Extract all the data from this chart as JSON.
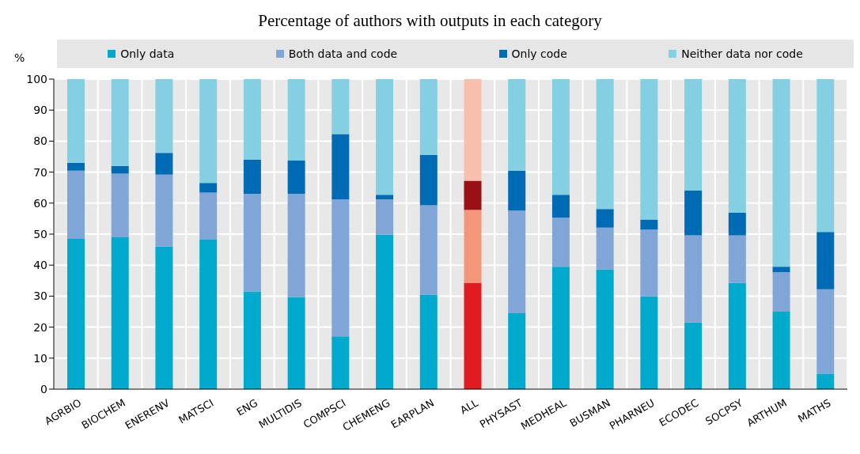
{
  "chart_data": {
    "type": "bar",
    "title": "Percentage of authors with outputs in each category",
    "ylabel": "%",
    "stacked": true,
    "grid": true,
    "legend": "top",
    "ylim": [
      0,
      100
    ],
    "yticks": [
      0,
      10,
      20,
      30,
      40,
      50,
      60,
      70,
      80,
      90,
      100
    ],
    "categories": [
      "AGRBIO",
      "BIOCHEM",
      "ENERENV",
      "MATSCI",
      "ENG",
      "MULTIDIS",
      "COMPSCI",
      "CHEMENG",
      "EARPLAN",
      "ALL",
      "PHYSAST",
      "MEDHEAL",
      "BUSMAN",
      "PHARNEU",
      "ECODEC",
      "SOCPSY",
      "ARTHUM",
      "MATHS"
    ],
    "series": [
      {
        "name": "Only data",
        "color": "#00aacc",
        "colors": [
          "#00aacc",
          "#00aacc",
          "#00aacc",
          "#00aacc",
          "#00aacc",
          "#00aacc",
          "#00aacc",
          "#00aacc",
          "#00aacc",
          "#e01b22",
          "#00aacc",
          "#00aacc",
          "#00aacc",
          "#00aacc",
          "#00aacc",
          "#00aacc",
          "#00aacc",
          "#00aacc"
        ],
        "values": [
          48.5,
          49,
          46,
          48.2,
          31.5,
          29.7,
          17,
          49.8,
          30.5,
          34.3,
          24.5,
          39.5,
          38.6,
          29.9,
          21.5,
          34.3,
          25,
          5
        ]
      },
      {
        "name": "Both data and code",
        "color": "#7fa6d6",
        "colors": [
          "#7fa6d6",
          "#7fa6d6",
          "#7fa6d6",
          "#7fa6d6",
          "#7fa6d6",
          "#7fa6d6",
          "#7fa6d6",
          "#7fa6d6",
          "#7fa6d6",
          "#f4967a",
          "#7fa6d6",
          "#7fa6d6",
          "#7fa6d6",
          "#7fa6d6",
          "#7fa6d6",
          "#7fa6d6",
          "#7fa6d6",
          "#7fa6d6"
        ],
        "values": [
          22,
          20.5,
          23.2,
          15.2,
          31.5,
          33.3,
          44.2,
          11.4,
          28.8,
          23.5,
          33.1,
          15.8,
          13.5,
          21.6,
          28.1,
          15.3,
          12.7,
          27.2
        ]
      },
      {
        "name": "Only code",
        "color": "#006bb5",
        "colors": [
          "#006bb5",
          "#006bb5",
          "#006bb5",
          "#006bb5",
          "#006bb5",
          "#006bb5",
          "#006bb5",
          "#006bb5",
          "#006bb5",
          "#9a1015",
          "#006bb5",
          "#006bb5",
          "#006bb5",
          "#006bb5",
          "#006bb5",
          "#006bb5",
          "#006bb5",
          "#006bb5"
        ],
        "values": [
          2.5,
          2.5,
          7,
          3.1,
          11,
          10.7,
          21.1,
          1.5,
          16.2,
          9.4,
          12.9,
          7.4,
          6,
          3.2,
          14.4,
          7.3,
          1.8,
          18.5
        ]
      },
      {
        "name": "Neither data nor code",
        "color": "#84d0e2",
        "colors": [
          "#84d0e2",
          "#84d0e2",
          "#84d0e2",
          "#84d0e2",
          "#84d0e2",
          "#84d0e2",
          "#84d0e2",
          "#84d0e2",
          "#84d0e2",
          "#f9bfad",
          "#84d0e2",
          "#84d0e2",
          "#84d0e2",
          "#84d0e2",
          "#84d0e2",
          "#84d0e2",
          "#84d0e2",
          "#84d0e2"
        ],
        "values": [
          27,
          28,
          23.8,
          33.5,
          26,
          26.3,
          17.7,
          37.3,
          24.5,
          32.8,
          29.5,
          37.3,
          41.9,
          45.3,
          36,
          43.1,
          60.5,
          49.3
        ]
      }
    ]
  }
}
